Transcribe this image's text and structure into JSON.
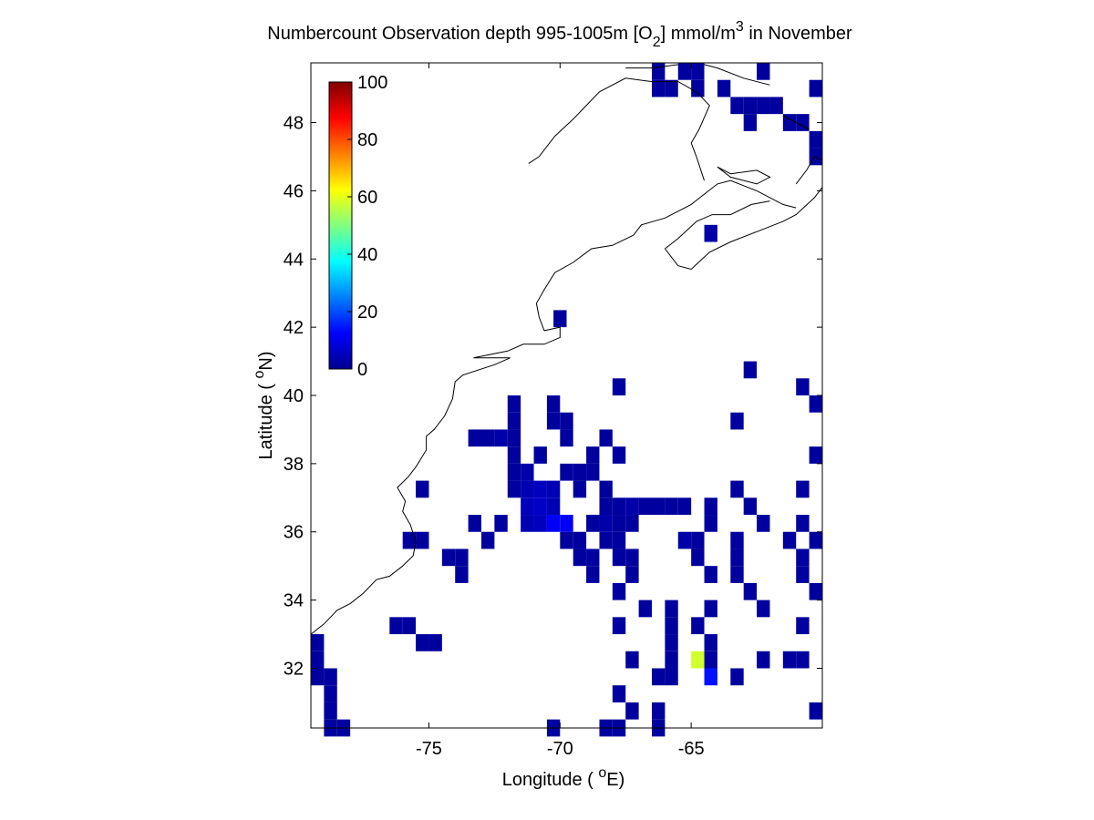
{
  "chart_data": {
    "type": "heatmap",
    "title": {
      "prefix": "Numbercount Observation depth 995-1005m [O",
      "sub": "2",
      "mid": "] mmol/m",
      "sup": "3",
      "suffix": " in November"
    },
    "xlabel": {
      "prefix": "Longitude ( ",
      "sup": "o",
      "suffix": "E)"
    },
    "ylabel": {
      "prefix": "Latitude ( ",
      "sup": "o",
      "suffix": "N)"
    },
    "xlim": [
      -79.5,
      -60.0
    ],
    "ylim": [
      30.25,
      49.75
    ],
    "xticks": [
      -75,
      -70,
      -65
    ],
    "yticks": [
      32,
      34,
      36,
      38,
      40,
      42,
      44,
      46,
      48
    ],
    "colorbar": {
      "min": 0,
      "max": 100,
      "ticks": [
        0,
        20,
        40,
        60,
        80,
        100
      ],
      "colormap": "jet"
    },
    "cell_size_deg": 0.5,
    "cells": [
      [
        -66.25,
        49.5,
        3
      ],
      [
        -65.25,
        49.5,
        3
      ],
      [
        -64.75,
        49.5,
        3
      ],
      [
        -62.25,
        49.5,
        3
      ],
      [
        -66.25,
        49.0,
        3
      ],
      [
        -65.75,
        49.0,
        3
      ],
      [
        -64.75,
        49.0,
        3
      ],
      [
        -63.75,
        49.0,
        3
      ],
      [
        -60.25,
        49.0,
        3
      ],
      [
        -63.25,
        48.5,
        3
      ],
      [
        -62.75,
        48.5,
        3
      ],
      [
        -62.25,
        48.5,
        3
      ],
      [
        -61.75,
        48.5,
        3
      ],
      [
        -62.75,
        48.0,
        3
      ],
      [
        -61.25,
        48.0,
        3
      ],
      [
        -60.75,
        48.0,
        3
      ],
      [
        -60.25,
        47.5,
        3
      ],
      [
        -60.25,
        47.0,
        3
      ],
      [
        -64.25,
        44.75,
        4
      ],
      [
        -70.0,
        42.25,
        3
      ],
      [
        -62.75,
        40.75,
        3
      ],
      [
        -67.75,
        40.25,
        3
      ],
      [
        -60.75,
        40.25,
        3
      ],
      [
        -71.75,
        39.75,
        3
      ],
      [
        -70.25,
        39.75,
        3
      ],
      [
        -60.25,
        39.75,
        3
      ],
      [
        -71.75,
        39.25,
        3
      ],
      [
        -70.25,
        39.25,
        3
      ],
      [
        -69.75,
        39.25,
        3
      ],
      [
        -63.25,
        39.25,
        3
      ],
      [
        -73.25,
        38.75,
        3
      ],
      [
        -72.75,
        38.75,
        3
      ],
      [
        -72.25,
        38.75,
        4
      ],
      [
        -71.75,
        38.75,
        3
      ],
      [
        -69.75,
        38.75,
        3
      ],
      [
        -68.25,
        38.75,
        3
      ],
      [
        -71.75,
        38.25,
        3
      ],
      [
        -70.75,
        38.25,
        3
      ],
      [
        -68.75,
        38.25,
        3
      ],
      [
        -67.75,
        38.25,
        3
      ],
      [
        -60.25,
        38.25,
        3
      ],
      [
        -71.75,
        37.75,
        3
      ],
      [
        -71.25,
        37.75,
        4
      ],
      [
        -69.75,
        37.75,
        3
      ],
      [
        -69.25,
        37.75,
        3
      ],
      [
        -68.75,
        37.75,
        3
      ],
      [
        -75.25,
        37.25,
        3
      ],
      [
        -71.75,
        37.25,
        3
      ],
      [
        -71.25,
        37.25,
        5
      ],
      [
        -70.75,
        37.25,
        6
      ],
      [
        -70.25,
        37.25,
        5
      ],
      [
        -69.25,
        37.25,
        3
      ],
      [
        -68.25,
        37.25,
        3
      ],
      [
        -63.25,
        37.25,
        3
      ],
      [
        -60.75,
        37.25,
        3
      ],
      [
        -71.25,
        36.75,
        6
      ],
      [
        -70.75,
        36.75,
        7
      ],
      [
        -70.25,
        36.75,
        5
      ],
      [
        -68.25,
        36.75,
        3
      ],
      [
        -67.75,
        36.75,
        3
      ],
      [
        -67.25,
        36.75,
        4
      ],
      [
        -66.75,
        36.75,
        3
      ],
      [
        -66.25,
        36.75,
        3
      ],
      [
        -65.75,
        36.75,
        3
      ],
      [
        -65.25,
        36.75,
        3
      ],
      [
        -64.25,
        36.75,
        3
      ],
      [
        -62.75,
        36.75,
        3
      ],
      [
        -73.25,
        36.25,
        3
      ],
      [
        -72.25,
        36.25,
        3
      ],
      [
        -71.25,
        36.25,
        5
      ],
      [
        -70.75,
        36.25,
        6
      ],
      [
        -70.25,
        36.25,
        12
      ],
      [
        -69.75,
        36.25,
        12
      ],
      [
        -68.75,
        36.25,
        3
      ],
      [
        -68.25,
        36.25,
        4
      ],
      [
        -67.75,
        36.25,
        3
      ],
      [
        -67.25,
        36.25,
        3
      ],
      [
        -64.25,
        36.25,
        3
      ],
      [
        -62.25,
        36.25,
        3
      ],
      [
        -60.75,
        36.25,
        3
      ],
      [
        -75.75,
        35.75,
        3
      ],
      [
        -75.25,
        35.75,
        3
      ],
      [
        -72.75,
        35.75,
        3
      ],
      [
        -69.75,
        35.75,
        3
      ],
      [
        -69.25,
        35.75,
        3
      ],
      [
        -68.25,
        35.75,
        3
      ],
      [
        -67.75,
        35.75,
        3
      ],
      [
        -65.25,
        35.75,
        4
      ],
      [
        -64.75,
        35.75,
        3
      ],
      [
        -63.25,
        35.75,
        3
      ],
      [
        -61.25,
        35.75,
        3
      ],
      [
        -60.25,
        35.75,
        3
      ],
      [
        -74.25,
        35.25,
        3
      ],
      [
        -73.75,
        35.25,
        3
      ],
      [
        -69.25,
        35.25,
        3
      ],
      [
        -68.75,
        35.25,
        3
      ],
      [
        -67.75,
        35.25,
        3
      ],
      [
        -67.25,
        35.25,
        3
      ],
      [
        -64.75,
        35.25,
        3
      ],
      [
        -63.25,
        35.25,
        3
      ],
      [
        -60.75,
        35.25,
        3
      ],
      [
        -73.75,
        34.75,
        3
      ],
      [
        -68.75,
        34.75,
        3
      ],
      [
        -67.25,
        34.75,
        3
      ],
      [
        -64.25,
        34.75,
        3
      ],
      [
        -63.25,
        34.75,
        3
      ],
      [
        -60.75,
        34.75,
        3
      ],
      [
        -67.75,
        34.25,
        3
      ],
      [
        -62.75,
        34.25,
        3
      ],
      [
        -60.25,
        34.25,
        3
      ],
      [
        -66.75,
        33.75,
        3
      ],
      [
        -65.75,
        33.75,
        3
      ],
      [
        -64.25,
        33.75,
        3
      ],
      [
        -62.25,
        33.75,
        3
      ],
      [
        -76.25,
        33.25,
        3
      ],
      [
        -75.75,
        33.25,
        3
      ],
      [
        -67.75,
        33.25,
        3
      ],
      [
        -65.75,
        33.25,
        3
      ],
      [
        -64.75,
        33.25,
        3
      ],
      [
        -60.75,
        33.25,
        3
      ],
      [
        -79.25,
        32.75,
        3
      ],
      [
        -75.25,
        32.75,
        3
      ],
      [
        -74.75,
        32.75,
        3
      ],
      [
        -65.75,
        32.75,
        3
      ],
      [
        -64.25,
        32.75,
        3
      ],
      [
        -79.25,
        32.25,
        3
      ],
      [
        -67.25,
        32.25,
        3
      ],
      [
        -65.75,
        32.25,
        3
      ],
      [
        -64.75,
        32.25,
        58
      ],
      [
        -64.25,
        32.25,
        3
      ],
      [
        -62.25,
        32.25,
        3
      ],
      [
        -61.25,
        32.25,
        3
      ],
      [
        -60.75,
        32.25,
        3
      ],
      [
        -79.25,
        31.75,
        3
      ],
      [
        -78.75,
        31.75,
        3
      ],
      [
        -66.25,
        31.75,
        3
      ],
      [
        -65.75,
        31.75,
        3
      ],
      [
        -64.25,
        31.75,
        14
      ],
      [
        -63.25,
        31.75,
        3
      ],
      [
        -78.75,
        31.25,
        3
      ],
      [
        -67.75,
        31.25,
        3
      ],
      [
        -78.75,
        30.75,
        3
      ],
      [
        -67.25,
        30.75,
        3
      ],
      [
        -66.25,
        30.75,
        3
      ],
      [
        -60.25,
        30.75,
        3
      ],
      [
        -78.75,
        30.25,
        3
      ],
      [
        -78.25,
        30.25,
        3
      ],
      [
        -70.25,
        30.25,
        3
      ],
      [
        -68.25,
        30.25,
        3
      ],
      [
        -67.75,
        30.25,
        3
      ],
      [
        -66.25,
        30.25,
        3
      ]
    ],
    "coastlines": [
      [
        [
          -79.5,
          33.0
        ],
        [
          -79.0,
          33.3
        ],
        [
          -78.5,
          33.7
        ],
        [
          -78.0,
          33.9
        ],
        [
          -77.5,
          34.2
        ],
        [
          -77.0,
          34.6
        ],
        [
          -76.5,
          34.7
        ],
        [
          -76.0,
          35.0
        ],
        [
          -75.6,
          35.3
        ],
        [
          -75.5,
          35.7
        ],
        [
          -75.7,
          36.2
        ],
        [
          -76.0,
          36.6
        ],
        [
          -75.9,
          36.9
        ],
        [
          -76.2,
          37.3
        ],
        [
          -75.8,
          37.6
        ],
        [
          -75.5,
          37.9
        ],
        [
          -75.1,
          38.4
        ],
        [
          -75.1,
          38.8
        ],
        [
          -74.8,
          39.0
        ],
        [
          -74.4,
          39.4
        ],
        [
          -74.1,
          39.9
        ],
        [
          -74.0,
          40.4
        ],
        [
          -73.7,
          40.6
        ],
        [
          -72.5,
          40.9
        ],
        [
          -71.9,
          41.1
        ],
        [
          -72.6,
          41.1
        ],
        [
          -73.3,
          41.1
        ],
        [
          -72.0,
          41.3
        ],
        [
          -71.4,
          41.5
        ],
        [
          -71.0,
          41.5
        ],
        [
          -70.6,
          41.5
        ],
        [
          -70.0,
          41.7
        ],
        [
          -70.0,
          42.0
        ],
        [
          -70.6,
          41.9
        ],
        [
          -70.8,
          42.3
        ],
        [
          -70.9,
          42.7
        ],
        [
          -70.6,
          43.1
        ],
        [
          -70.2,
          43.6
        ],
        [
          -69.5,
          43.9
        ],
        [
          -68.8,
          44.3
        ],
        [
          -68.0,
          44.4
        ],
        [
          -67.2,
          44.7
        ],
        [
          -66.9,
          45.0
        ],
        [
          -66.0,
          45.2
        ],
        [
          -65.0,
          45.6
        ],
        [
          -64.5,
          45.9
        ],
        [
          -64.0,
          46.2
        ],
        [
          -63.5,
          46.3
        ],
        [
          -62.5,
          46.0
        ],
        [
          -61.5,
          45.6
        ],
        [
          -61.0,
          45.5
        ]
      ],
      [
        [
          -66.0,
          44.3
        ],
        [
          -65.5,
          43.8
        ],
        [
          -65.0,
          43.7
        ],
        [
          -64.3,
          44.2
        ],
        [
          -63.5,
          44.5
        ],
        [
          -62.5,
          44.8
        ],
        [
          -61.5,
          45.1
        ],
        [
          -61.0,
          45.3
        ],
        [
          -60.3,
          45.8
        ],
        [
          -60.0,
          46.1
        ]
      ],
      [
        [
          -66.0,
          44.3
        ],
        [
          -65.5,
          44.6
        ],
        [
          -64.8,
          45.1
        ],
        [
          -64.2,
          45.3
        ],
        [
          -63.5,
          45.3
        ],
        [
          -62.7,
          45.6
        ],
        [
          -62.0,
          45.7
        ]
      ],
      [
        [
          -64.0,
          46.7
        ],
        [
          -63.5,
          46.4
        ],
        [
          -62.5,
          46.2
        ],
        [
          -62.0,
          46.4
        ],
        [
          -62.5,
          46.6
        ],
        [
          -63.5,
          46.5
        ],
        [
          -64.0,
          46.7
        ]
      ],
      [
        [
          -61.0,
          46.2
        ],
        [
          -60.6,
          46.6
        ],
        [
          -60.3,
          47.0
        ],
        [
          -60.0,
          46.9
        ]
      ],
      [
        [
          -64.5,
          46.3
        ],
        [
          -64.8,
          47.0
        ],
        [
          -65.0,
          47.4
        ],
        [
          -64.7,
          47.8
        ],
        [
          -64.3,
          48.5
        ],
        [
          -64.8,
          48.9
        ],
        [
          -65.5,
          49.2
        ],
        [
          -66.5,
          49.2
        ],
        [
          -67.5,
          49.3
        ],
        [
          -68.5,
          48.9
        ],
        [
          -69.5,
          48.1
        ],
        [
          -70.2,
          47.6
        ],
        [
          -70.8,
          47.0
        ],
        [
          -71.2,
          46.8
        ]
      ],
      [
        [
          -62.0,
          49.1
        ],
        [
          -63.0,
          49.3
        ],
        [
          -64.0,
          49.6
        ],
        [
          -64.5,
          49.7
        ]
      ],
      [
        [
          -67.5,
          49.6
        ],
        [
          -66.5,
          49.6
        ],
        [
          -65.5,
          49.7
        ]
      ],
      [
        [
          -61.5,
          48.2
        ],
        [
          -61.0,
          48.0
        ],
        [
          -60.5,
          47.8
        ]
      ]
    ]
  }
}
